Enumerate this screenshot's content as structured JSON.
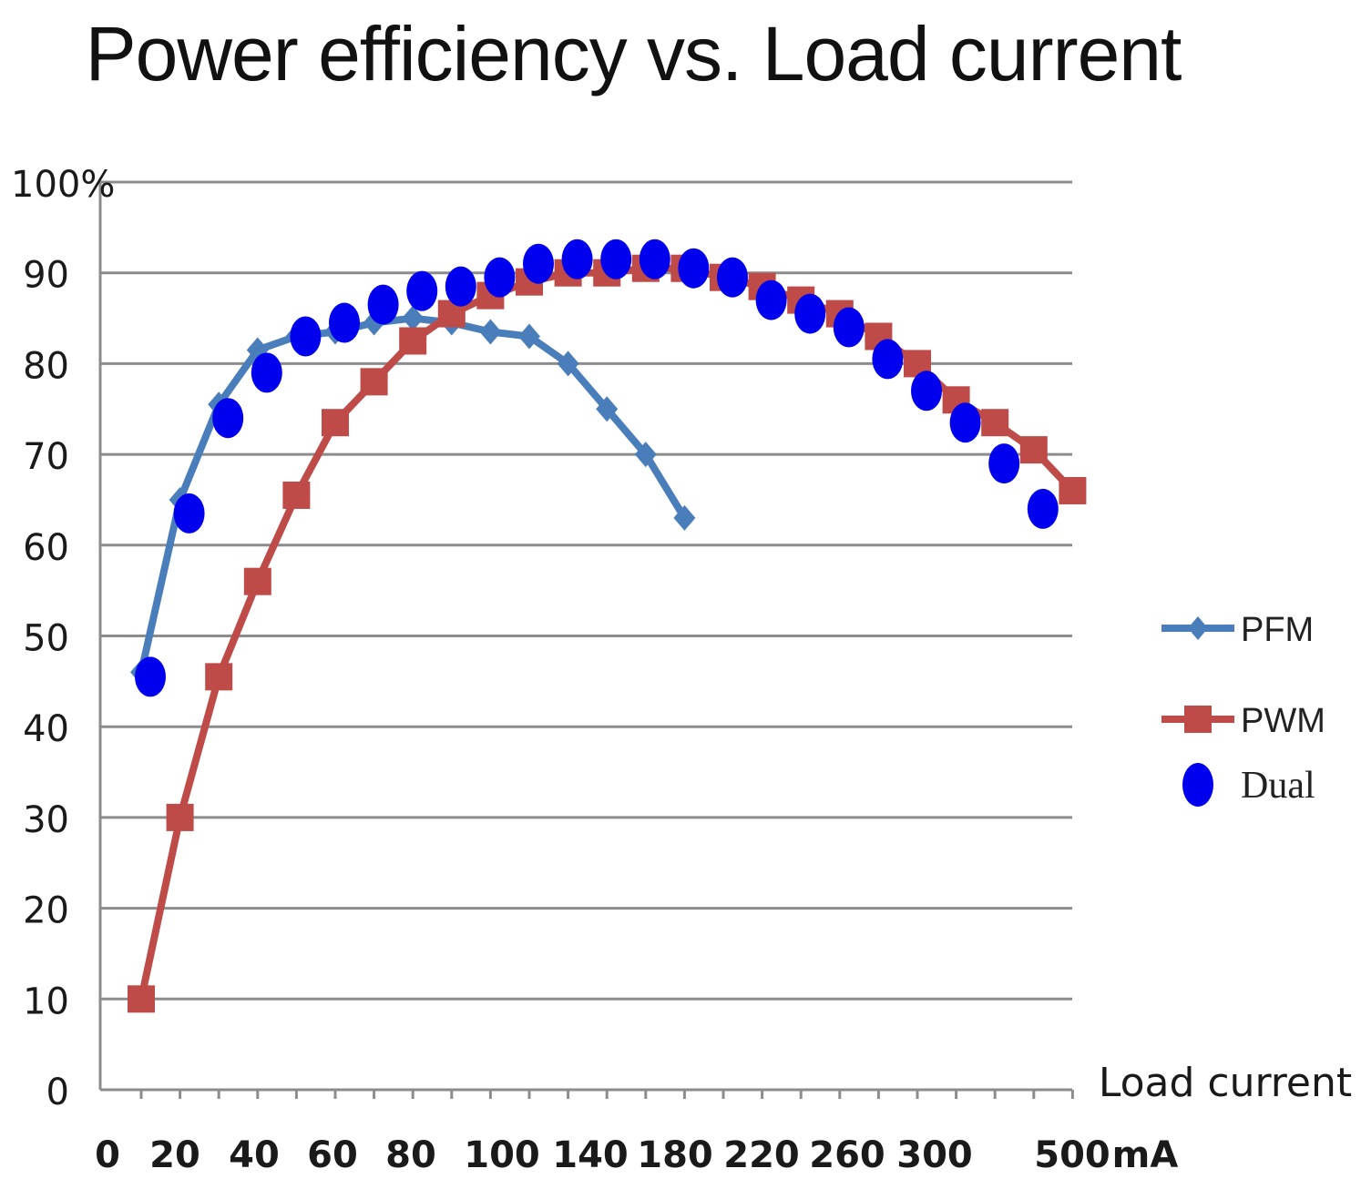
{
  "chart_data": {
    "type": "line",
    "title": "Power efficiency vs. Load current",
    "xlabel": "Load current",
    "x_unit": "mA",
    "x_tick_labels": [
      "0",
      "20",
      "40",
      "60",
      "80",
      "100",
      "140",
      "180",
      "220",
      "260",
      "300",
      "500"
    ],
    "y_tick_labels": [
      "0",
      "10",
      "20",
      "30",
      "40",
      "50",
      "60",
      "70",
      "80",
      "90",
      "100%"
    ],
    "ylim": [
      0,
      100
    ],
    "grid": true,
    "legend_position": "right",
    "series": [
      {
        "name": "PFM",
        "color": "#4a7ebb",
        "marker": "diamond",
        "values": [
          46,
          65,
          75.5,
          81.5,
          83,
          83.5,
          84.5,
          85,
          84.5,
          83.5,
          83,
          80,
          75,
          70,
          63
        ]
      },
      {
        "name": "PWM",
        "color": "#be4b48",
        "marker": "square",
        "values": [
          10,
          30,
          45.5,
          56,
          65.5,
          73.5,
          78,
          82.5,
          85.5,
          87.5,
          89,
          90,
          90,
          90.5,
          90.5,
          89.5,
          88.5,
          87,
          85.5,
          83,
          80,
          76,
          73.5,
          70.5,
          66
        ]
      },
      {
        "name": "Dual",
        "color": "#0000ee",
        "marker": "circle",
        "values": [
          45.5,
          63.5,
          74,
          79,
          83,
          84.5,
          86.5,
          88,
          88.5,
          89.5,
          91,
          91.5,
          91.5,
          91.5,
          90.5,
          89.5,
          87,
          85.5,
          84,
          80.5,
          77,
          73.5,
          69,
          64
        ]
      }
    ]
  }
}
